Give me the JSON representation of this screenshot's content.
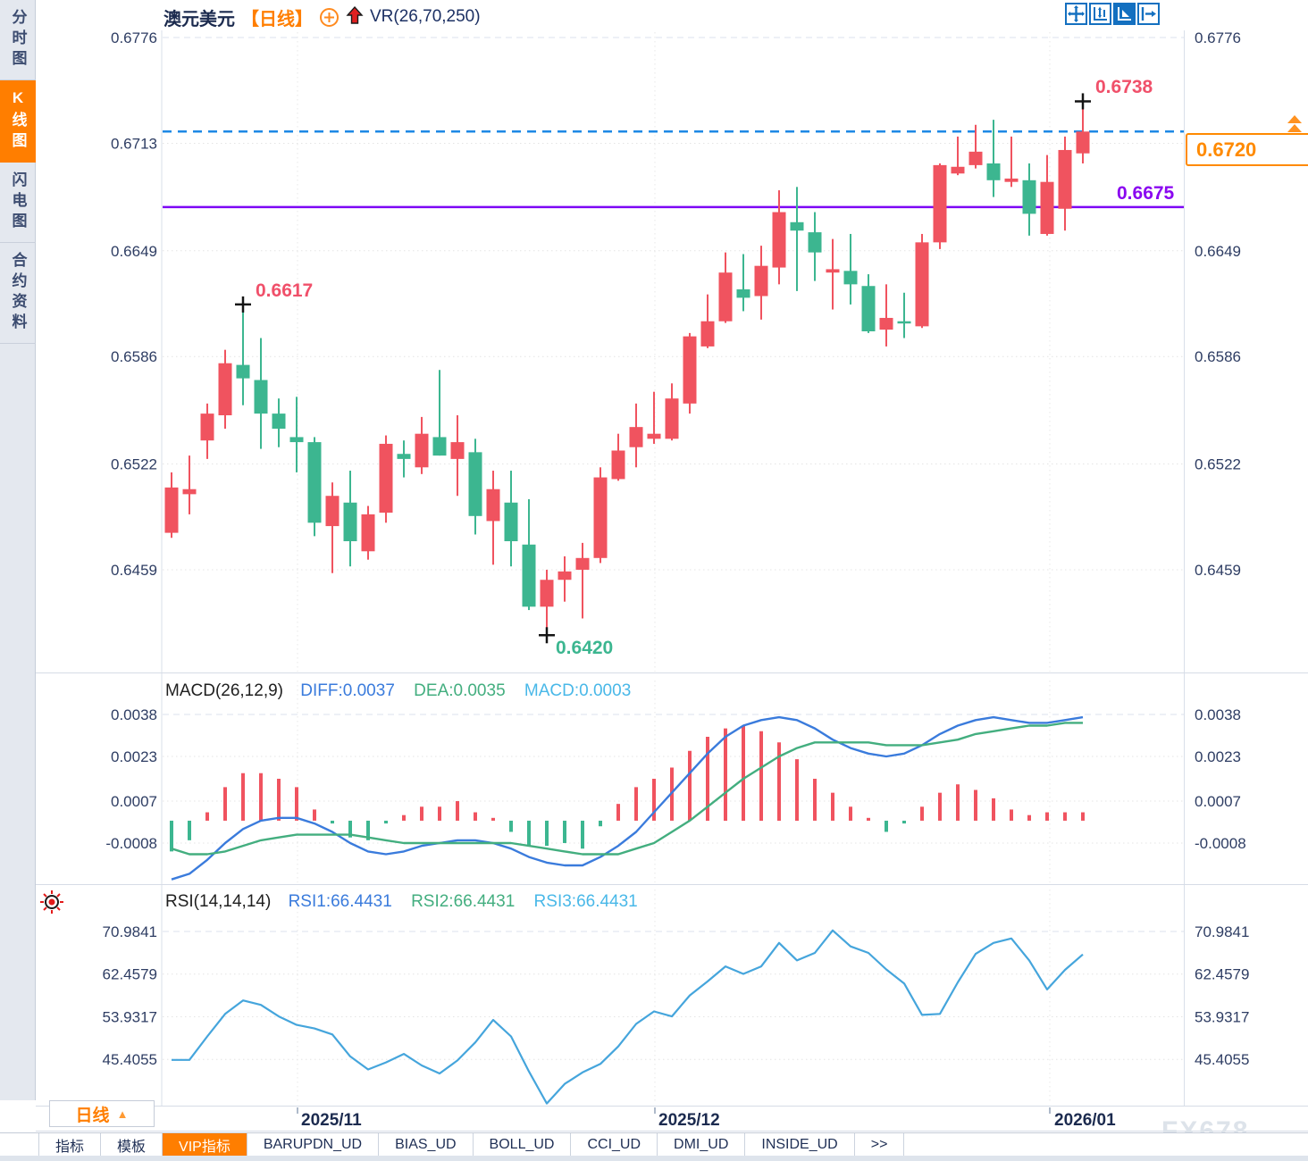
{
  "sidebar": {
    "items": [
      {
        "label": "分时图",
        "active": false
      },
      {
        "label": "K线图",
        "active": true
      },
      {
        "label": "闪电图",
        "active": false
      },
      {
        "label": "合约资料",
        "active": false
      }
    ]
  },
  "header": {
    "symbol": "澳元美元",
    "period_tag": "【日线】",
    "indicator": "VR(26,70,250)",
    "toolbar_icons": [
      "move-icon",
      "fit-y-axis-icon",
      "auto-scale-icon",
      "export-pane-icon"
    ]
  },
  "annotations": {
    "marked_high": "0.6738",
    "marked_swing_high": "0.6617",
    "marked_low": "0.6420",
    "support_line_label": "0.6675",
    "last_price_tag": "0.6720"
  },
  "macd_header": {
    "name": "MACD(26,12,9)",
    "diff": "DIFF:0.0037",
    "dea": "DEA:0.0035",
    "macd": "MACD:0.0003"
  },
  "rsi_header": {
    "name": "RSI(14,14,14)",
    "rsi1": "RSI1:66.4431",
    "rsi2": "RSI2:66.4431",
    "rsi3": "RSI3:66.4431"
  },
  "x_axis": {
    "labels": [
      "2025/11",
      "2025/12",
      "2026/01"
    ]
  },
  "bottom_bar": {
    "period_button": "日线",
    "tabs": [
      {
        "label": "指标",
        "active": false
      },
      {
        "label": "模板",
        "active": false
      },
      {
        "label": "VIP指标",
        "active": true
      },
      {
        "label": "BARUPDN_UD",
        "active": false
      },
      {
        "label": "BIAS_UD",
        "active": false
      },
      {
        "label": "BOLL_UD",
        "active": false
      },
      {
        "label": "CCI_UD",
        "active": false
      },
      {
        "label": "DMI_UD",
        "active": false
      },
      {
        "label": "INSIDE_UD",
        "active": false
      },
      {
        "label": ">>",
        "active": false
      }
    ]
  },
  "watermark": "FX678",
  "colors": {
    "up": "#f0535f",
    "down": "#3cb690",
    "diff_line": "#3a7bdc",
    "dea_line": "#43ae7f",
    "rsi_line": "#45a5dc",
    "dashed_line": "#1e88e5",
    "support_line": "#7d05f5",
    "accent_orange": "#ff7e00",
    "annotation_red": "#f0506a",
    "annotation_green": "#3cb690",
    "axis_text": "#2e3d63",
    "icon_blue": "#1470c0"
  },
  "chart_data": [
    {
      "type": "candlestick",
      "title": "澳元美元 日线 (AUD/USD daily)",
      "note": "Chinese convention: red = up candle, green = down candle",
      "y_ticks": [
        0.6776,
        0.6713,
        0.6649,
        0.6586,
        0.6522,
        0.6459
      ],
      "x_labels": [
        "2025/11",
        "2025/12",
        "2026/01"
      ],
      "overlays": {
        "support_line": 0.6675,
        "last_price_dashed": 0.672,
        "marked_high": 0.6738,
        "marked_swing_high": 0.6617,
        "marked_low": 0.642
      },
      "ohlc": [
        [
          0.6481,
          0.6517,
          0.6478,
          0.6508
        ],
        [
          0.6504,
          0.6527,
          0.6492,
          0.6507
        ],
        [
          0.6536,
          0.6558,
          0.6525,
          0.6552
        ],
        [
          0.6551,
          0.659,
          0.6543,
          0.6582
        ],
        [
          0.6581,
          0.6617,
          0.6557,
          0.6573
        ],
        [
          0.6572,
          0.6597,
          0.6531,
          0.6552
        ],
        [
          0.6552,
          0.6561,
          0.6532,
          0.6543
        ],
        [
          0.6538,
          0.6562,
          0.6517,
          0.6535
        ],
        [
          0.6535,
          0.6538,
          0.6479,
          0.6487
        ],
        [
          0.6485,
          0.6511,
          0.6457,
          0.6503
        ],
        [
          0.6499,
          0.6518,
          0.6461,
          0.6476
        ],
        [
          0.647,
          0.6497,
          0.6465,
          0.6492
        ],
        [
          0.6493,
          0.6539,
          0.6487,
          0.6534
        ],
        [
          0.6528,
          0.6536,
          0.6514,
          0.6525
        ],
        [
          0.652,
          0.655,
          0.6516,
          0.654
        ],
        [
          0.6538,
          0.6578,
          0.6527,
          0.6527
        ],
        [
          0.6525,
          0.6551,
          0.6503,
          0.6535
        ],
        [
          0.6529,
          0.6537,
          0.648,
          0.6491
        ],
        [
          0.6488,
          0.6518,
          0.6462,
          0.6507
        ],
        [
          0.6499,
          0.6518,
          0.6461,
          0.6476
        ],
        [
          0.6474,
          0.6501,
          0.6435,
          0.6437
        ],
        [
          0.6437,
          0.6459,
          0.642,
          0.6453
        ],
        [
          0.6453,
          0.6467,
          0.644,
          0.6458
        ],
        [
          0.6459,
          0.6475,
          0.643,
          0.6466
        ],
        [
          0.6466,
          0.652,
          0.6463,
          0.6514
        ],
        [
          0.6513,
          0.654,
          0.6512,
          0.653
        ],
        [
          0.6532,
          0.6558,
          0.652,
          0.6544
        ],
        [
          0.6537,
          0.6565,
          0.6534,
          0.654
        ],
        [
          0.6537,
          0.657,
          0.6536,
          0.6561
        ],
        [
          0.6558,
          0.66,
          0.6552,
          0.6598
        ],
        [
          0.6592,
          0.6623,
          0.6591,
          0.6607
        ],
        [
          0.6607,
          0.6648,
          0.6606,
          0.6636
        ],
        [
          0.6626,
          0.6647,
          0.6613,
          0.6621
        ],
        [
          0.6622,
          0.6652,
          0.6608,
          0.664
        ],
        [
          0.6639,
          0.6685,
          0.6629,
          0.6672
        ],
        [
          0.6666,
          0.6687,
          0.6625,
          0.6661
        ],
        [
          0.666,
          0.6672,
          0.6631,
          0.6648
        ],
        [
          0.6636,
          0.6656,
          0.6614,
          0.6638
        ],
        [
          0.6637,
          0.6659,
          0.6617,
          0.6629
        ],
        [
          0.6628,
          0.6635,
          0.66,
          0.6601
        ],
        [
          0.6602,
          0.6629,
          0.6592,
          0.6609
        ],
        [
          0.6607,
          0.6624,
          0.6597,
          0.6606
        ],
        [
          0.6604,
          0.6659,
          0.6603,
          0.6654
        ],
        [
          0.6654,
          0.6701,
          0.665,
          0.67
        ],
        [
          0.6695,
          0.6717,
          0.6694,
          0.6699
        ],
        [
          0.67,
          0.6724,
          0.6698,
          0.6708
        ],
        [
          0.6701,
          0.6727,
          0.6681,
          0.6691
        ],
        [
          0.669,
          0.6717,
          0.6687,
          0.6692
        ],
        [
          0.6691,
          0.6701,
          0.6658,
          0.6671
        ],
        [
          0.6659,
          0.6706,
          0.6658,
          0.669
        ],
        [
          0.6674,
          0.6717,
          0.6661,
          0.6709
        ],
        [
          0.6707,
          0.6738,
          0.6701,
          0.672
        ]
      ]
    },
    {
      "type": "macd",
      "params": "26,12,9",
      "readout": {
        "DIFF": 0.0037,
        "DEA": 0.0035,
        "MACD": 0.0003
      },
      "y_ticks": [
        0.0038,
        0.0023,
        0.0007,
        -0.0008
      ],
      "hist": [
        -0.0011,
        -0.0007,
        0.0003,
        0.0012,
        0.0017,
        0.0017,
        0.0015,
        0.0012,
        0.0004,
        -0.0001,
        -0.0006,
        -0.0007,
        -0.0001,
        0.0002,
        0.0005,
        0.0005,
        0.0007,
        0.0003,
        0.0001,
        -0.0004,
        -0.0009,
        -0.0009,
        -0.0008,
        -0.001,
        -0.0002,
        0.0006,
        0.0012,
        0.0015,
        0.0019,
        0.0025,
        0.003,
        0.0033,
        0.0034,
        0.0032,
        0.0028,
        0.0022,
        0.0015,
        0.001,
        0.0005,
        0.0001,
        -0.0004,
        -0.0001,
        0.0005,
        0.001,
        0.0013,
        0.0011,
        0.0008,
        0.0004,
        0.0002,
        0.0003,
        0.0003,
        0.0003
      ],
      "diff": [
        -0.0021,
        -0.0019,
        -0.0014,
        -0.0008,
        -0.0003,
        0.0,
        0.0001,
        0.0001,
        -0.0001,
        -0.0004,
        -0.0008,
        -0.0011,
        -0.0012,
        -0.0011,
        -0.0009,
        -0.0008,
        -0.0007,
        -0.0007,
        -0.0008,
        -0.001,
        -0.0013,
        -0.0015,
        -0.0016,
        -0.0016,
        -0.0013,
        -0.0009,
        -0.0004,
        0.0003,
        0.001,
        0.0017,
        0.0024,
        0.003,
        0.0034,
        0.0036,
        0.0037,
        0.0036,
        0.0033,
        0.0029,
        0.0026,
        0.0024,
        0.0023,
        0.0024,
        0.0027,
        0.0031,
        0.0034,
        0.0036,
        0.0037,
        0.0036,
        0.0035,
        0.0035,
        0.0036,
        0.0037
      ],
      "dea": [
        -0.001,
        -0.0012,
        -0.0012,
        -0.0011,
        -0.0009,
        -0.0007,
        -0.0006,
        -0.0005,
        -0.0005,
        -0.0005,
        -0.0005,
        -0.0006,
        -0.0007,
        -0.0008,
        -0.0008,
        -0.0008,
        -0.0008,
        -0.0008,
        -0.0008,
        -0.0008,
        -0.0009,
        -0.001,
        -0.0011,
        -0.0012,
        -0.0012,
        -0.0012,
        -0.001,
        -0.0008,
        -0.0004,
        0.0,
        0.0005,
        0.001,
        0.0015,
        0.0019,
        0.0023,
        0.0026,
        0.0028,
        0.0028,
        0.0028,
        0.0028,
        0.0027,
        0.0027,
        0.0027,
        0.0028,
        0.0029,
        0.0031,
        0.0032,
        0.0033,
        0.0034,
        0.0034,
        0.0035,
        0.0035
      ]
    },
    {
      "type": "rsi",
      "params": "14,14,14",
      "readout": {
        "RSI1": 66.4431,
        "RSI2": 66.4431,
        "RSI3": 66.4431
      },
      "y_ticks": [
        70.9841,
        62.4579,
        53.9317,
        45.4055
      ],
      "rsi": [
        45.3,
        45.3,
        50.0,
        54.5,
        57.2,
        56.3,
        54.0,
        52.3,
        51.6,
        50.4,
        46.0,
        43.4,
        44.8,
        46.5,
        44.2,
        42.6,
        45.2,
        48.8,
        53.3,
        50.0,
        43.0,
        36.6,
        40.5,
        42.8,
        44.5,
        48.0,
        52.5,
        55.0,
        54.0,
        58.2,
        61.0,
        64.0,
        62.5,
        64.0,
        68.7,
        65.2,
        66.7,
        71.2,
        68.0,
        66.7,
        63.4,
        60.6,
        54.3,
        54.5,
        60.8,
        66.5,
        68.7,
        69.6,
        65.2,
        59.4,
        63.3,
        66.4
      ]
    }
  ]
}
